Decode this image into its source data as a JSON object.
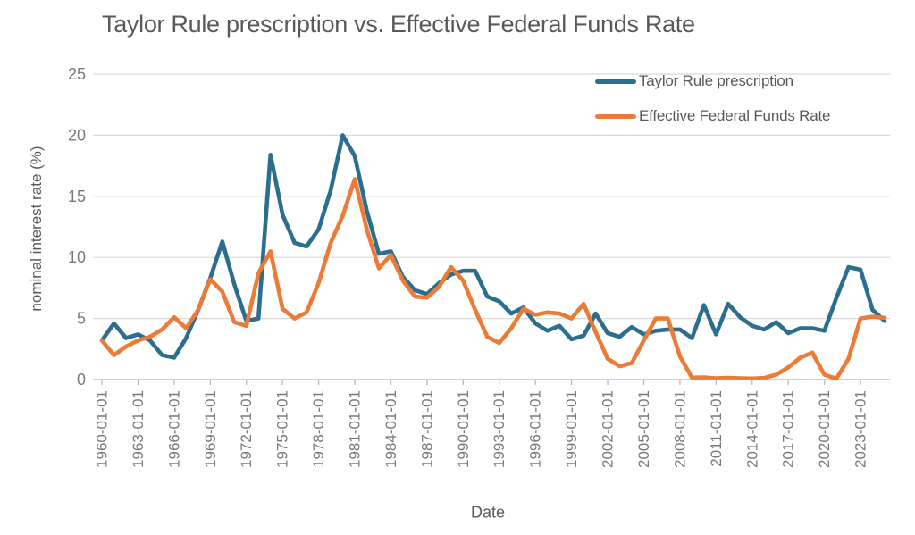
{
  "colors": {
    "background": "#FFFFFF",
    "text_primary": "#595959",
    "tick_text": "#7A7A7A",
    "grid": "#D9D9D9",
    "axis": "#BFBFBF",
    "taylor_line": "#2B6E8E",
    "effr_line": "#EB7B36"
  },
  "chart_data": {
    "type": "line",
    "title": "Taylor Rule prescription vs. Effective Federal Funds Rate",
    "xlabel": "Date",
    "ylabel": "nominal interest rate (%)",
    "ylim": [
      0,
      25
    ],
    "yticks": [
      0,
      5,
      10,
      15,
      20,
      25
    ],
    "grid": "horizontal",
    "legend_position": "top-right",
    "x_start_year": 1960,
    "x_step_years": 1,
    "x_tick_labels": [
      "1960-01-01",
      "1963-01-01",
      "1966-01-01",
      "1969-01-01",
      "1972-01-01",
      "1975-01-01",
      "1978-01-01",
      "1981-01-01",
      "1984-01-01",
      "1987-01-01",
      "1990-01-01",
      "1993-01-01",
      "1996-01-01",
      "1999-01-01",
      "2002-01-01",
      "2005-01-01",
      "2008-01-01",
      "2011-01-01",
      "2014-01-01",
      "2017-01-01",
      "2020-01-01",
      "2023-01-01"
    ],
    "x_tick_interval_years": 3,
    "series": [
      {
        "name": "Taylor Rule prescription",
        "color": "#2B6E8E",
        "values": [
          3.2,
          4.6,
          3.4,
          3.7,
          3.2,
          2.0,
          1.8,
          3.4,
          5.7,
          8.3,
          11.3,
          7.8,
          4.8,
          5.0,
          18.4,
          13.5,
          11.2,
          10.9,
          12.3,
          15.5,
          20.0,
          18.3,
          13.8,
          10.3,
          10.5,
          8.4,
          7.3,
          7.0,
          7.9,
          8.6,
          8.9,
          8.9,
          6.8,
          6.4,
          5.4,
          5.9,
          4.6,
          4.0,
          4.4,
          3.3,
          3.6,
          5.4,
          3.8,
          3.5,
          4.3,
          3.7,
          4.0,
          4.1,
          4.1,
          3.4,
          6.1,
          3.7,
          6.2,
          5.1,
          4.4,
          4.1,
          4.7,
          3.8,
          4.2,
          4.2,
          4.0,
          6.7,
          9.2,
          9.0,
          5.7,
          4.8
        ]
      },
      {
        "name": "Effective Federal Funds Rate",
        "color": "#EB7B36",
        "values": [
          3.2,
          2.0,
          2.7,
          3.2,
          3.5,
          4.1,
          5.1,
          4.2,
          5.7,
          8.2,
          7.2,
          4.7,
          4.4,
          8.7,
          10.5,
          5.8,
          5.0,
          5.5,
          7.9,
          11.2,
          13.4,
          16.4,
          12.3,
          9.1,
          10.2,
          8.1,
          6.8,
          6.7,
          7.6,
          9.2,
          8.1,
          5.7,
          3.5,
          3.0,
          4.2,
          5.8,
          5.3,
          5.5,
          5.4,
          5.0,
          6.2,
          3.9,
          1.7,
          1.1,
          1.35,
          3.2,
          5.0,
          5.0,
          1.9,
          0.16,
          0.18,
          0.1,
          0.14,
          0.11,
          0.09,
          0.13,
          0.4,
          1.0,
          1.8,
          2.2,
          0.4,
          0.08,
          1.7,
          5.0,
          5.15,
          5.05
        ]
      }
    ]
  }
}
